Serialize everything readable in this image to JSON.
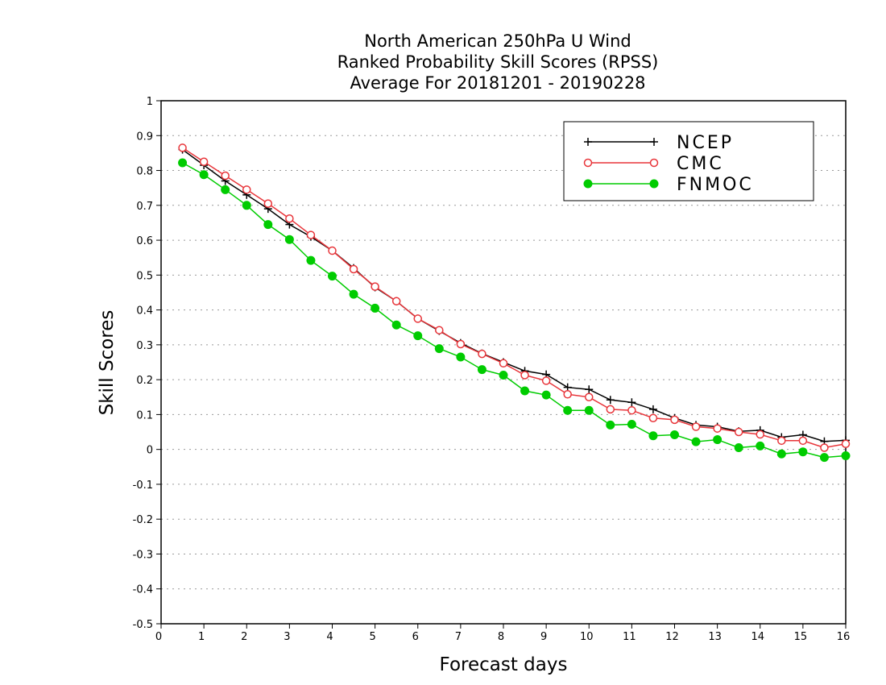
{
  "chart_data": {
    "type": "line",
    "title": [
      "North American 250hPa U Wind",
      "Ranked Probability Skill Scores (RPSS)",
      "Average For 20181201 - 20190228"
    ],
    "xlabel": "Forecast days",
    "ylabel": "Skill Scores",
    "xlim": [
      0,
      16
    ],
    "ylim": [
      -0.5,
      1
    ],
    "xticks": [
      "0",
      "1",
      "2",
      "3",
      "4",
      "5",
      "6",
      "7",
      "8",
      "9",
      "10",
      "11",
      "12",
      "13",
      "14",
      "15",
      "16"
    ],
    "yticks": [
      "-0.5",
      "-0.4",
      "-0.3",
      "-0.2",
      "-0.1",
      "0",
      "0.1",
      "0.2",
      "0.3",
      "0.4",
      "0.5",
      "0.6",
      "0.7",
      "0.8",
      "0.9",
      "1"
    ],
    "grid": true,
    "legend_position": "top-right",
    "x": [
      0.5,
      1,
      1.5,
      2,
      2.5,
      3,
      3.5,
      4,
      4.5,
      5,
      5.5,
      6,
      6.5,
      7,
      7.5,
      8,
      8.5,
      9,
      9.5,
      10,
      10.5,
      11,
      11.5,
      12,
      12.5,
      13,
      13.5,
      14,
      14.5,
      15,
      15.5,
      16
    ],
    "series": [
      {
        "name": "NCEP",
        "color": "#000000",
        "marker": "plus",
        "values": [
          0.86,
          0.815,
          0.77,
          0.73,
          0.69,
          0.645,
          0.61,
          0.57,
          0.52,
          0.465,
          0.425,
          0.375,
          0.34,
          0.305,
          0.275,
          0.25,
          0.225,
          0.215,
          0.178,
          0.172,
          0.142,
          0.135,
          0.115,
          0.09,
          0.07,
          0.065,
          0.052,
          0.055,
          0.035,
          0.042,
          0.023,
          0.026
        ]
      },
      {
        "name": "CMC",
        "color": "#e8353a",
        "marker": "open-circle",
        "values": [
          0.865,
          0.825,
          0.785,
          0.745,
          0.705,
          0.662,
          0.615,
          0.57,
          0.517,
          0.467,
          0.425,
          0.375,
          0.342,
          0.302,
          0.274,
          0.247,
          0.213,
          0.197,
          0.158,
          0.15,
          0.115,
          0.112,
          0.09,
          0.085,
          0.065,
          0.06,
          0.05,
          0.043,
          0.025,
          0.025,
          0.005,
          0.016
        ]
      },
      {
        "name": "FNMOC",
        "color": "#00cc00",
        "marker": "filled-circle",
        "values": [
          0.822,
          0.788,
          0.745,
          0.7,
          0.645,
          0.602,
          0.542,
          0.497,
          0.445,
          0.405,
          0.357,
          0.326,
          0.289,
          0.265,
          0.229,
          0.213,
          0.168,
          0.156,
          0.112,
          0.112,
          0.07,
          0.072,
          0.039,
          0.042,
          0.022,
          0.028,
          0.005,
          0.01,
          -0.013,
          -0.007,
          -0.023,
          -0.018
        ]
      }
    ]
  }
}
